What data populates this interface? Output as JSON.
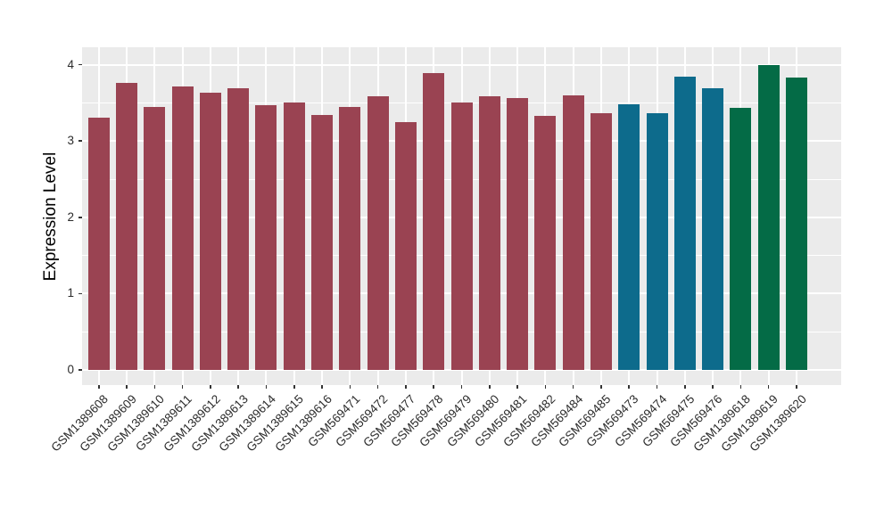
{
  "chart_data": {
    "type": "bar",
    "title": "",
    "xlabel": "",
    "ylabel": "Expression Level",
    "ylim": [
      -0.2,
      4.23
    ],
    "yticks_major": [
      0,
      1,
      2,
      3,
      4
    ],
    "yticks_minor": [
      0.5,
      1.5,
      2.5,
      3.5
    ],
    "grid": true,
    "legend": false,
    "panel_bg": "#EBEBEB",
    "grid_color": "#FFFFFF",
    "palette": {
      "red": "#9A4352",
      "blue": "#0D6B8C",
      "green": "#046B46"
    },
    "categories": [
      "GSM1389608",
      "GSM1389609",
      "GSM1389610",
      "GSM1389611",
      "GSM1389612",
      "GSM1389613",
      "GSM1389614",
      "GSM1389615",
      "GSM1389616",
      "GSM569471",
      "GSM569472",
      "GSM569477",
      "GSM569478",
      "GSM569479",
      "GSM569480",
      "GSM569481",
      "GSM569482",
      "GSM569484",
      "GSM569485",
      "GSM569473",
      "GSM569474",
      "GSM569475",
      "GSM569476",
      "GSM1389618",
      "GSM1389619",
      "GSM1389620"
    ],
    "values": [
      3.31,
      3.76,
      3.45,
      3.72,
      3.63,
      3.69,
      3.47,
      3.5,
      3.34,
      3.45,
      3.59,
      3.25,
      3.89,
      3.5,
      3.59,
      3.56,
      3.33,
      3.6,
      3.37,
      3.48,
      3.37,
      3.84,
      3.69,
      3.44,
      3.99,
      3.83
    ],
    "colors": [
      "#9A4352",
      "#9A4352",
      "#9A4352",
      "#9A4352",
      "#9A4352",
      "#9A4352",
      "#9A4352",
      "#9A4352",
      "#9A4352",
      "#9A4352",
      "#9A4352",
      "#9A4352",
      "#9A4352",
      "#9A4352",
      "#9A4352",
      "#9A4352",
      "#9A4352",
      "#9A4352",
      "#9A4352",
      "#0D6B8C",
      "#0D6B8C",
      "#0D6B8C",
      "#0D6B8C",
      "#046B46",
      "#046B46",
      "#046B46"
    ]
  }
}
